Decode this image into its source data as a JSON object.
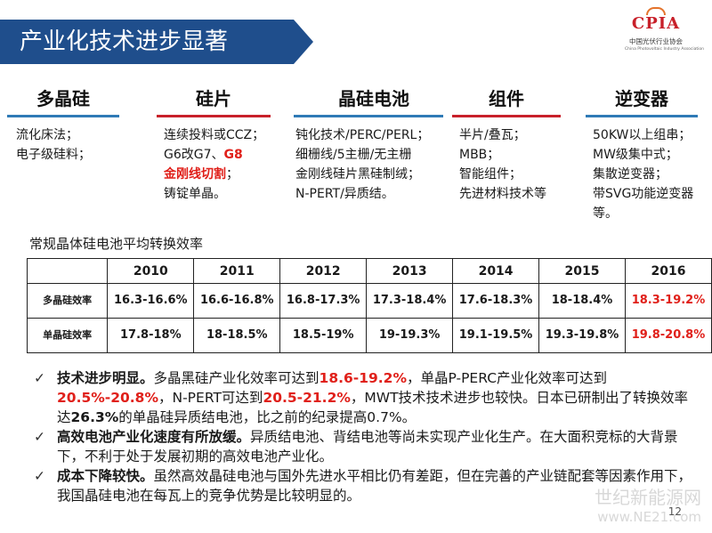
{
  "title": "产业化技术进步显著",
  "logo": {
    "mark": "CPIA",
    "cn": "中国光伏行业协会",
    "en": "China Photovoltaic Industry Association"
  },
  "columns": [
    {
      "head": "多晶硅",
      "items": [
        "流化床法；",
        "电子级硅料；"
      ]
    },
    {
      "head": "硅片",
      "items": [
        "连续投料或CCZ；",
        "G6改G7、",
        "G8",
        "金刚线切割",
        "；",
        "铸锭单晶。"
      ]
    },
    {
      "head": "晶硅电池",
      "items": [
        "钝化技术/PERC/PERL；",
        "细栅线/5主栅/无主栅",
        "金刚线硅片黑硅制绒；",
        "N-PERT/异质结。"
      ]
    },
    {
      "head": "组件",
      "items": [
        "半片/叠瓦；",
        "MBB；",
        "智能组件；",
        "先进材料技术等"
      ]
    },
    {
      "head": "逆变器",
      "items": [
        "50KW以上组串；",
        "MW级集中式；",
        "集散逆变器；",
        "带SVG功能逆变器等。"
      ]
    }
  ],
  "table": {
    "caption": "常规晶体硅电池平均转换效率",
    "years": [
      "2010",
      "2011",
      "2012",
      "2013",
      "2014",
      "2015",
      "2016"
    ],
    "rows": [
      {
        "label": "多晶硅效率",
        "cells": [
          "16.3-16.6%",
          "16.6-16.8%",
          "16.8-17.3%",
          "17.3-18.4%",
          "17.6-18.3%",
          "18-18.4%",
          "18.3-19.2%"
        ]
      },
      {
        "label": "单晶硅效率",
        "cells": [
          "17.8-18%",
          "18-18.5%",
          "18.5-19%",
          "19-19.3%",
          "19.1-19.5%",
          "19.3-19.8%",
          "19.8-20.8%"
        ]
      }
    ]
  },
  "bullets": {
    "b1": {
      "lead": "技术进步明显。",
      "t1": "多晶黑硅产业化效率可达到",
      "h1": "18.6-19.2%",
      "t2": "，单晶P-PERC产业化效率可达到",
      "h2": "20.5%-20.8%",
      "t3": "，N-PERT可达到",
      "h3": "20.5-21.2%",
      "t4": "，MWT技术技术进步也较快。日本已研制出了转换效率达",
      "b4": "26.3%",
      "t5": "的单晶硅异质结电池，比之前的纪录提高0.7%。"
    },
    "b2": {
      "lead": "高效电池产业化速度有所放缓。",
      "text": "异质结电池、背结电池等尚未实现产业化生产。在大面积竞标的大背景下，不利于处于发展初期的高效电池产业化。"
    },
    "b3": {
      "lead": "成本下降较快。",
      "text": "虽然高效晶硅电池与国外先进水平相比仍有差距，但在完善的产业链配套等因素作用下，我国晶硅电池在每瓦上的竞争优势是比较明显的。"
    }
  },
  "watermark": {
    "cn": "世纪新能源网",
    "url": "www.NE21.com"
  },
  "page_number": "12"
}
